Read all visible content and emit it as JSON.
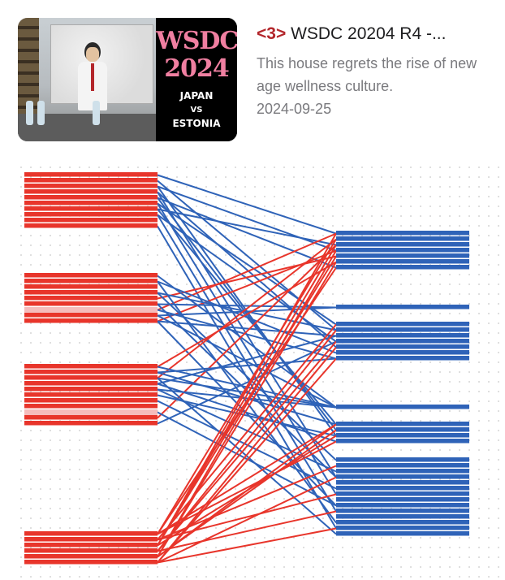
{
  "video": {
    "thumbnail": {
      "line1": "WSDC",
      "line2": "2024",
      "line3": "JAPAN",
      "line4": "VS",
      "line5": "ESTONIA"
    },
    "number_label": "<3>",
    "title": "WSDC 20204 R4 -...",
    "description": "This house regrets the rise of new age wellness culture.",
    "date": "2024-09-25"
  },
  "colors": {
    "red": "#e8352b",
    "blue": "#2f63b8",
    "pale_red": "#f5bcbc",
    "accent": "#b3262b"
  },
  "chart_data": {
    "type": "parallel-links",
    "left_groups": [
      {
        "rows": 10,
        "highlight_rows": []
      },
      {
        "rows": 9,
        "highlight_rows": [
          6
        ]
      },
      {
        "rows": 11,
        "highlight_rows": [
          8
        ]
      },
      {
        "rows": 6,
        "highlight_rows": []
      }
    ],
    "right_groups": [
      {
        "rows": 7
      },
      {
        "rows": 1
      },
      {
        "rows": 7
      },
      {
        "rows": 1
      },
      {
        "rows": 4
      },
      {
        "rows": 14
      }
    ],
    "links": [
      {
        "from": 0,
        "to": 0,
        "color": "blue",
        "count": 4
      },
      {
        "from": 0,
        "to": 2,
        "color": "blue",
        "count": 4
      },
      {
        "from": 0,
        "to": 4,
        "color": "blue",
        "count": 3
      },
      {
        "from": 0,
        "to": 5,
        "color": "blue",
        "count": 4
      },
      {
        "from": 1,
        "to": 0,
        "color": "red",
        "count": 3
      },
      {
        "from": 1,
        "to": 1,
        "color": "blue",
        "count": 2
      },
      {
        "from": 1,
        "to": 2,
        "color": "blue",
        "count": 4
      },
      {
        "from": 1,
        "to": 3,
        "color": "blue",
        "count": 2
      },
      {
        "from": 1,
        "to": 5,
        "color": "blue",
        "count": 4
      },
      {
        "from": 2,
        "to": 0,
        "color": "red",
        "count": 3
      },
      {
        "from": 2,
        "to": 2,
        "color": "blue",
        "count": 3
      },
      {
        "from": 2,
        "to": 3,
        "color": "blue",
        "count": 3
      },
      {
        "from": 2,
        "to": 4,
        "color": "blue",
        "count": 3
      },
      {
        "from": 2,
        "to": 5,
        "color": "blue",
        "count": 4
      },
      {
        "from": 3,
        "to": 0,
        "color": "red",
        "count": 7
      },
      {
        "from": 3,
        "to": 2,
        "color": "red",
        "count": 5
      },
      {
        "from": 3,
        "to": 4,
        "color": "red",
        "count": 5
      },
      {
        "from": 3,
        "to": 5,
        "color": "red",
        "count": 5
      }
    ]
  }
}
